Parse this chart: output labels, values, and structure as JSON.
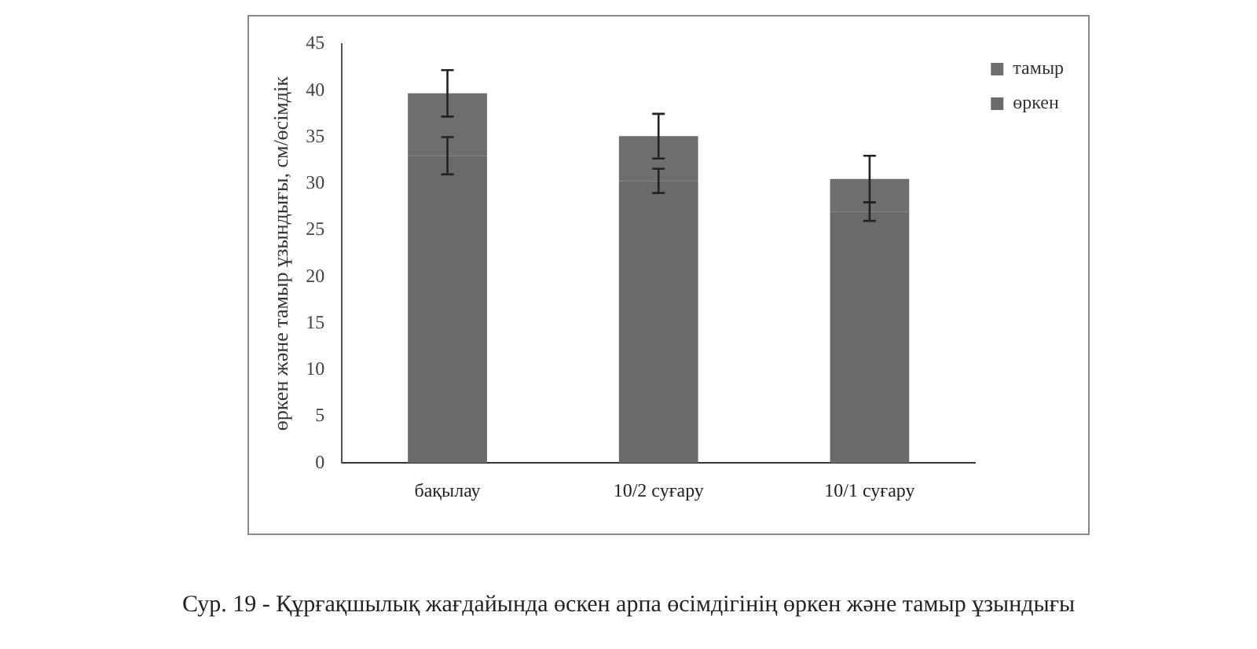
{
  "chart_data": {
    "type": "bar",
    "ylabel": "өркен және тамыр ұзындығы, см/өсімдік",
    "categories": [
      "бақылау",
      "10/2 суғару",
      "10/1 суғару"
    ],
    "series": [
      {
        "name": "өркен",
        "color": "#6a6a6a",
        "values": [
          33,
          30.3,
          27
        ],
        "errors": [
          2,
          1.3,
          1
        ]
      },
      {
        "name": "тамыр",
        "color": "#6e6e6e",
        "values": [
          6.7,
          4.8,
          3.5
        ],
        "errors": [
          2.5,
          2.4,
          2.5
        ]
      }
    ],
    "stacked": true,
    "ylim": [
      0,
      45
    ],
    "yticks": [
      0,
      5,
      10,
      15,
      20,
      25,
      30,
      35,
      40,
      45
    ],
    "grid": false,
    "legend": "top right",
    "annotations": [
      "Сур. 19 - Құрғақшылық жағдайында өскен арпа өсімдігінің өркен және тамыр ұзындығы"
    ]
  }
}
